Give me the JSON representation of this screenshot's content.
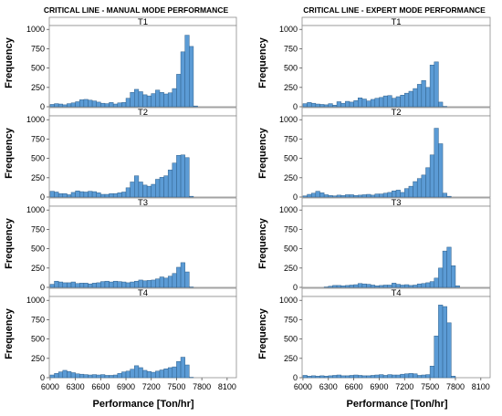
{
  "chart_data": [
    {
      "type": "bar",
      "title": "CRITICAL LINE - MANUAL MODE PERFORMANCE",
      "xlabel": "Performance [Ton/hr]",
      "ylabel": "Frequency",
      "xlim": [
        5990,
        8210
      ],
      "ylim": [
        0,
        1050
      ],
      "xticks": [
        "6000",
        "6300",
        "6600",
        "6900",
        "7200",
        "7500",
        "7800",
        "8100"
      ],
      "xtick_values": [
        6000,
        6300,
        6600,
        6900,
        7200,
        7500,
        7800,
        8100
      ],
      "yticks": [
        "0",
        "250",
        "500",
        "750",
        "1000"
      ],
      "ytick_values": [
        0,
        250,
        500,
        750,
        1000
      ],
      "bin_start": 6000,
      "bin_width": 50,
      "panels": [
        {
          "name": "T1",
          "values": [
            30,
            40,
            35,
            25,
            40,
            50,
            65,
            90,
            95,
            85,
            75,
            60,
            45,
            40,
            55,
            35,
            50,
            55,
            110,
            185,
            225,
            195,
            155,
            140,
            170,
            215,
            185,
            165,
            180,
            235,
            420,
            710,
            925,
            780,
            10,
            0,
            0,
            0,
            0,
            0,
            0,
            0,
            0,
            0
          ]
        },
        {
          "name": "T2",
          "values": [
            75,
            65,
            45,
            45,
            30,
            60,
            80,
            70,
            65,
            75,
            70,
            55,
            35,
            35,
            45,
            45,
            55,
            65,
            120,
            195,
            275,
            195,
            155,
            140,
            165,
            230,
            255,
            275,
            350,
            440,
            540,
            545,
            510,
            10,
            0,
            0,
            0,
            0,
            0,
            0,
            0,
            0,
            0,
            0
          ]
        },
        {
          "name": "T3",
          "values": [
            40,
            80,
            70,
            60,
            60,
            70,
            50,
            55,
            55,
            45,
            55,
            60,
            75,
            80,
            70,
            80,
            75,
            70,
            60,
            70,
            80,
            95,
            85,
            90,
            95,
            110,
            135,
            120,
            145,
            180,
            260,
            320,
            200,
            5,
            0,
            0,
            0,
            0,
            0,
            0,
            0,
            0,
            0,
            0
          ]
        },
        {
          "name": "T4",
          "values": [
            35,
            55,
            75,
            95,
            80,
            65,
            50,
            45,
            40,
            35,
            40,
            35,
            40,
            30,
            30,
            35,
            55,
            75,
            85,
            110,
            155,
            130,
            95,
            80,
            70,
            85,
            100,
            115,
            130,
            140,
            210,
            265,
            165,
            5,
            0,
            0,
            0,
            0,
            0,
            0,
            0,
            0,
            0,
            0
          ]
        }
      ]
    },
    {
      "type": "bar",
      "title": "CRITICAL LINE - EXPERT MODE PERFORMANCE",
      "xlabel": "Performance [Ton/hr]",
      "ylabel": "Frequency",
      "xlim": [
        5990,
        8210
      ],
      "ylim": [
        0,
        1050
      ],
      "xticks": [
        "6000",
        "6300",
        "6600",
        "6900",
        "7200",
        "7500",
        "7800",
        "8100"
      ],
      "xtick_values": [
        6000,
        6300,
        6600,
        6900,
        7200,
        7500,
        7800,
        8100
      ],
      "yticks": [
        "0",
        "250",
        "500",
        "750",
        "1000"
      ],
      "ytick_values": [
        0,
        250,
        500,
        750,
        1000
      ],
      "bin_start": 6000,
      "bin_width": 50,
      "panels": [
        {
          "name": "T1",
          "values": [
            40,
            55,
            45,
            35,
            30,
            25,
            40,
            20,
            65,
            45,
            70,
            60,
            80,
            115,
            100,
            75,
            95,
            110,
            120,
            140,
            145,
            110,
            130,
            150,
            175,
            200,
            235,
            290,
            340,
            250,
            540,
            580,
            60,
            5,
            0,
            0,
            0,
            0,
            0,
            0,
            0,
            0,
            0,
            0
          ]
        },
        {
          "name": "T2",
          "values": [
            15,
            35,
            50,
            75,
            55,
            30,
            20,
            15,
            25,
            20,
            30,
            30,
            20,
            25,
            30,
            35,
            25,
            40,
            40,
            50,
            60,
            80,
            90,
            60,
            110,
            140,
            200,
            240,
            285,
            380,
            545,
            890,
            690,
            50,
            10,
            0,
            0,
            0,
            0,
            0,
            0,
            0,
            0,
            0
          ]
        },
        {
          "name": "T3",
          "values": [
            0,
            0,
            0,
            0,
            0,
            5,
            15,
            25,
            25,
            20,
            25,
            30,
            35,
            50,
            45,
            40,
            30,
            20,
            25,
            30,
            30,
            55,
            40,
            30,
            35,
            25,
            30,
            45,
            50,
            60,
            75,
            120,
            250,
            470,
            520,
            280,
            20,
            0,
            0,
            0,
            0,
            0,
            0,
            0
          ]
        },
        {
          "name": "T4",
          "values": [
            30,
            20,
            25,
            20,
            25,
            20,
            25,
            30,
            35,
            25,
            25,
            30,
            35,
            30,
            25,
            25,
            30,
            35,
            40,
            30,
            40,
            35,
            35,
            45,
            50,
            55,
            50,
            30,
            35,
            40,
            150,
            540,
            940,
            920,
            710,
            20,
            0,
            0,
            0,
            0,
            0,
            0,
            0,
            0
          ]
        }
      ]
    }
  ]
}
